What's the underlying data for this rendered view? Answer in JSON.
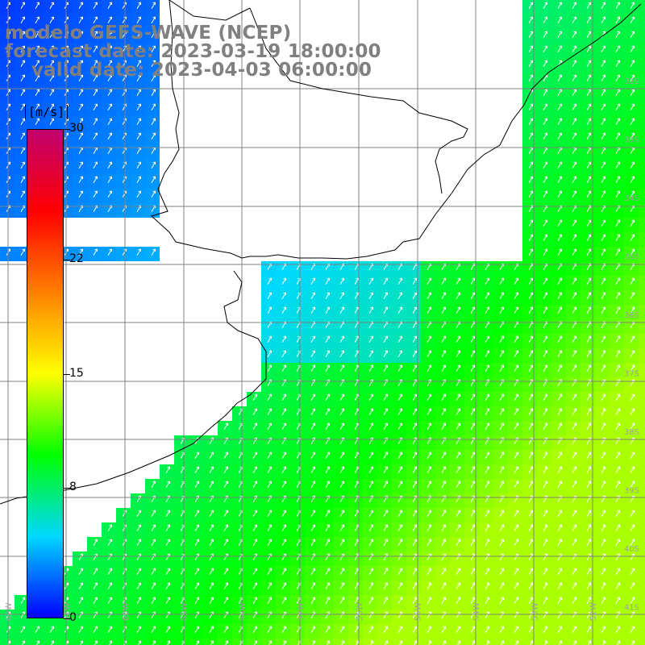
{
  "header": {
    "line1": "modelo GEFS-WAVE (NCEP)",
    "line2": "forecast date: 2023-03-19 18:00:00",
    "line3": "    valid date: 2023-04-03 06:00:00"
  },
  "colorbar": {
    "units": "[m/s]",
    "ticks": [
      {
        "label": "30",
        "value": 30
      },
      {
        "label": "22",
        "value": 22
      },
      {
        "label": "15",
        "value": 15
      },
      {
        "label": "8",
        "value": 8
      },
      {
        "label": "0",
        "value": 0
      }
    ],
    "colors": [
      "#0000ff",
      "#00d8ff",
      "#00ff00",
      "#ffff00",
      "#ff8000",
      "#ff0000",
      "#c00070"
    ]
  },
  "map": {
    "lat_labels": [
      "32S",
      "33S",
      "34S",
      "35S",
      "36S",
      "37S",
      "38S",
      "39S",
      "40S",
      "41S"
    ],
    "lon_labels": [
      "62W",
      "61W",
      "60W",
      "59W",
      "58W",
      "57W",
      "56W",
      "55W",
      "54W",
      "53W",
      "52W"
    ],
    "land_color": "#ffffff",
    "grid_color": "#808080",
    "variable": "wind speed",
    "range": [
      0,
      30
    ]
  }
}
